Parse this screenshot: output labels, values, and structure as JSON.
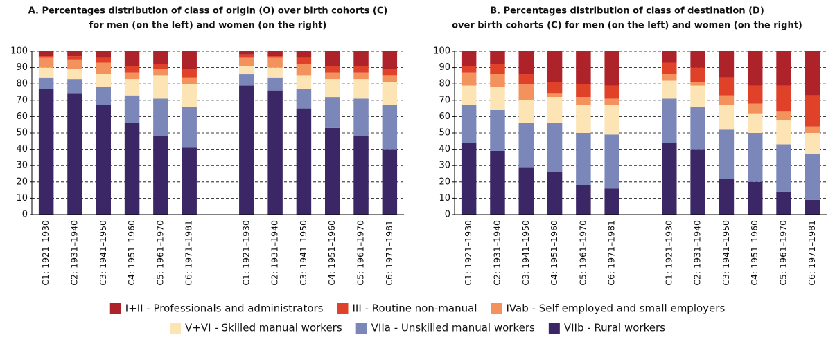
{
  "chart_data": [
    {
      "type": "stacked-bar",
      "title": [
        "A. Percentages distribution of class of origin (O) over birth cohorts (C)",
        "for men (on the left) and women (on the right)"
      ],
      "categories": [
        "C1: 1921–1930",
        "C2: 1931–1940",
        "C3: 1941–1950",
        "C4: 1951–1960",
        "C5: 1961–1970",
        "C6: 1971–1981",
        null,
        "C1: 1921–1930",
        "C2: 1931–1940",
        "C3: 1941–1950",
        "C4: 1951–1960",
        "C5: 1961–1970",
        "C6: 1971–1981"
      ],
      "ylim": [
        0,
        100
      ],
      "yticks": [
        0,
        10,
        20,
        30,
        40,
        50,
        60,
        70,
        80,
        90,
        100
      ],
      "grid": true,
      "series": [
        {
          "name": "VIIb - Rural workers",
          "color": "#3b2766",
          "values": [
            77,
            74,
            67,
            56,
            48,
            41,
            null,
            79,
            76,
            65,
            53,
            48,
            40
          ]
        },
        {
          "name": "VIIa - Unskilled manual workers",
          "color": "#7b87b9",
          "values": [
            7,
            9,
            11,
            17,
            23,
            25,
            null,
            7,
            8,
            12,
            19,
            23,
            27
          ]
        },
        {
          "name": "V+VI - Skilled manual workers",
          "color": "#fde4b4",
          "values": [
            6,
            6,
            8,
            10,
            14,
            14,
            null,
            5,
            6,
            8,
            11,
            12,
            14
          ]
        },
        {
          "name": "IVab - Self employed and small employers",
          "color": "#f4925e",
          "values": [
            6,
            6,
            7,
            4,
            4,
            4,
            null,
            5,
            6,
            7,
            4,
            4,
            4
          ]
        },
        {
          "name": "III - Routine non-manual",
          "color": "#df4229",
          "values": [
            1,
            2,
            3,
            4,
            3,
            5,
            null,
            2,
            1,
            4,
            4,
            4,
            4
          ]
        },
        {
          "name": "I+II - Professionals and administrators",
          "color": "#ae2229",
          "values": [
            3,
            3,
            4,
            9,
            8,
            11,
            null,
            2,
            3,
            4,
            9,
            9,
            11
          ]
        }
      ]
    },
    {
      "type": "stacked-bar",
      "title": [
        "B. Percentages distribution of class of destination (D)",
        "over birth cohorts (C) for men (on the left) and women (on the right)"
      ],
      "categories": [
        "C1: 1921–1930",
        "C2: 1931–1940",
        "C3: 1941–1950",
        "C4: 1951–1960",
        "C5: 1961–1970",
        "C6: 1971–1981",
        null,
        "C1: 1921–1930",
        "C2: 1931–1940",
        "C3: 1941–1950",
        "C4: 1951–1960",
        "C5: 1961–1970",
        "C6: 1971–1981"
      ],
      "ylim": [
        0,
        100
      ],
      "yticks": [
        0,
        10,
        20,
        30,
        40,
        50,
        60,
        70,
        80,
        90,
        100
      ],
      "grid": true,
      "series": [
        {
          "values": [
            44,
            39,
            29,
            26,
            18,
            16,
            null,
            44,
            40,
            22,
            20,
            14,
            9
          ]
        },
        {
          "values": [
            23,
            25,
            27,
            30,
            32,
            33,
            null,
            27,
            26,
            30,
            30,
            29,
            28
          ]
        },
        {
          "values": [
            12,
            14,
            14,
            16,
            17,
            18,
            null,
            11,
            13,
            15,
            12,
            15,
            13
          ]
        },
        {
          "values": [
            8,
            8,
            10,
            2,
            5,
            4,
            null,
            4,
            2,
            6,
            6,
            5,
            4
          ]
        },
        {
          "values": [
            4,
            6,
            6,
            7,
            8,
            8,
            null,
            7,
            9,
            11,
            11,
            16,
            19
          ]
        },
        {
          "values": [
            9,
            8,
            14,
            19,
            20,
            21,
            null,
            7,
            10,
            16,
            21,
            21,
            27
          ]
        }
      ]
    }
  ]
}
